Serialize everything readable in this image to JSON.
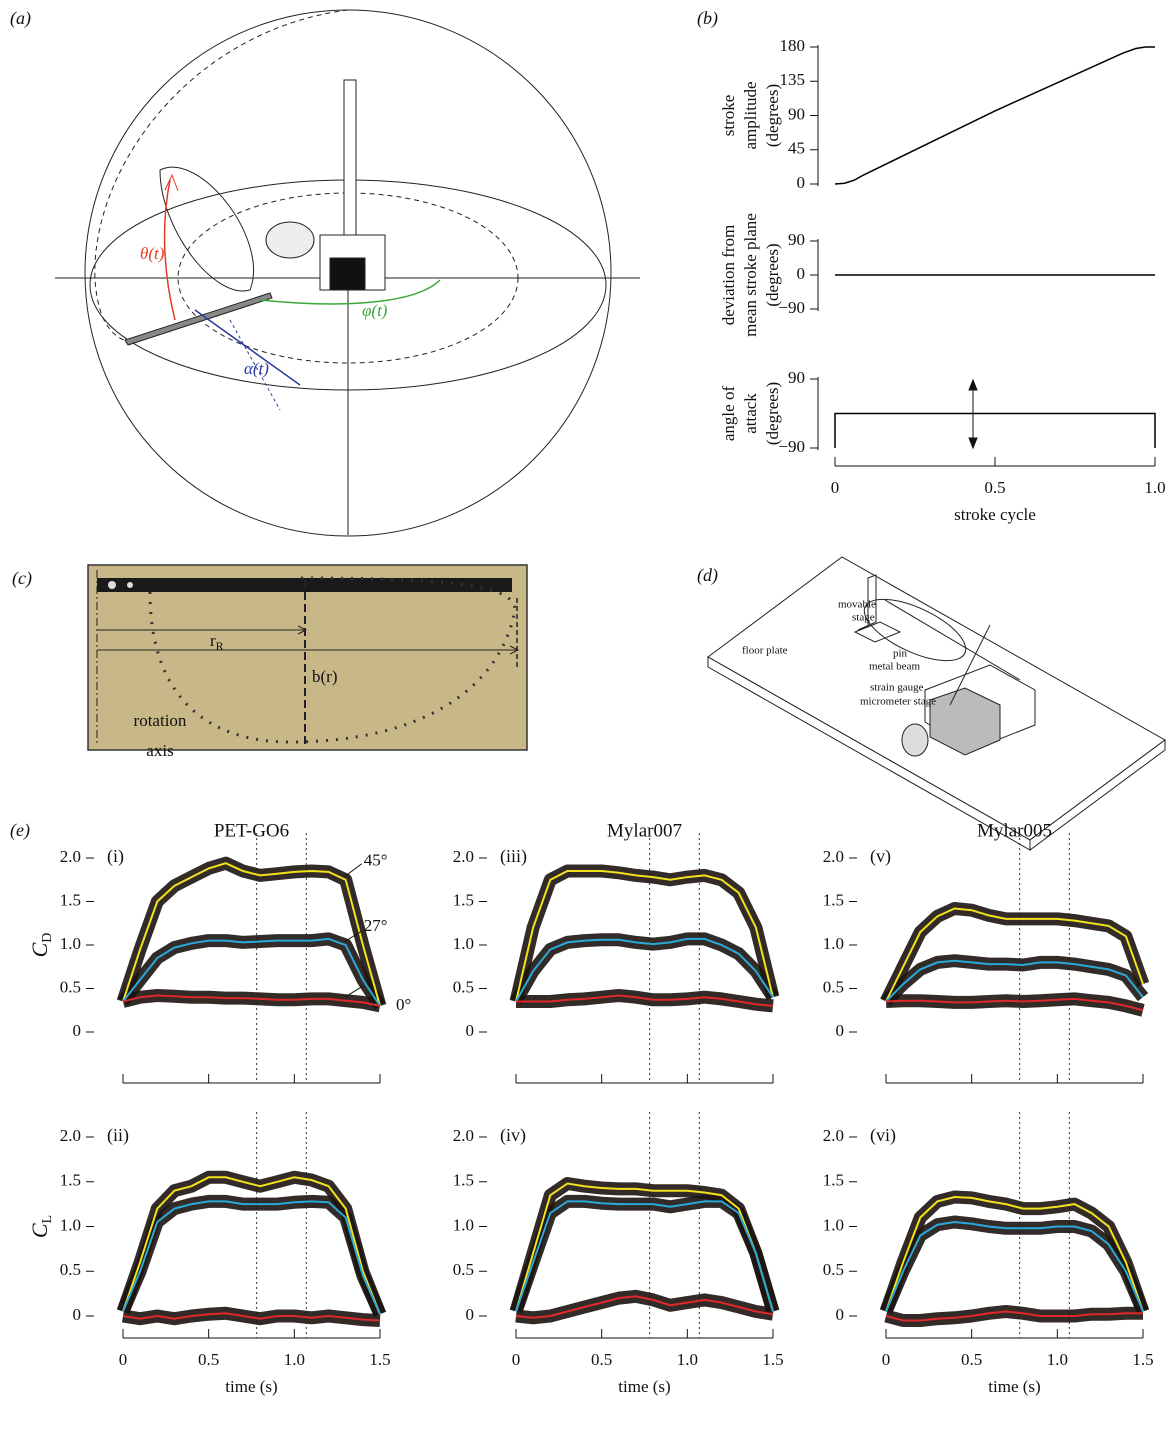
{
  "panel_a": {
    "label": "(a)",
    "theta": "θ(t)",
    "phi": "φ(t)",
    "alpha": "α(t)"
  },
  "panel_b": {
    "label": "(b)"
  },
  "panel_c": {
    "label": "(c)",
    "r": "r",
    "r_sub": "R",
    "b": "b(r)",
    "axis_1": "rotation",
    "axis_2": "axis"
  },
  "panel_d": {
    "label": "(d)",
    "floor": "floor plate",
    "stage_1": "movable",
    "stage_2": "stage",
    "pin": "pin",
    "beam": "metal beam",
    "gauge": "strain gauge",
    "micrometer": "micrometer stage"
  },
  "panel_e": {
    "label": "(e)"
  },
  "chart_data": [
    {
      "type": "line",
      "ylabel": [
        "stroke",
        "amplitude",
        "(degrees)"
      ],
      "x": [
        0,
        0.03,
        0.06,
        0.09,
        0.5,
        0.9,
        0.94,
        0.97,
        1
      ],
      "values": [
        0,
        1,
        5,
        12,
        96,
        172,
        178,
        180,
        180
      ],
      "color": "#000000",
      "xlim": [
        0,
        1
      ],
      "ylim": [
        0,
        180
      ],
      "yticks": [
        0,
        45,
        90,
        135,
        180
      ]
    },
    {
      "type": "line",
      "ylabel": [
        "deviation from",
        "mean stroke plane",
        "(degrees)"
      ],
      "x": [
        0,
        1
      ],
      "values": [
        0,
        0
      ],
      "color": "#000000",
      "xlim": [
        0,
        1
      ],
      "ylim": [
        -90,
        90
      ],
      "yticks": [
        {
          "value": -90,
          "label": "−90"
        },
        0,
        90
      ]
    },
    {
      "type": "line",
      "ylabel": [
        "angle of",
        "attack",
        "(degrees)"
      ],
      "x": [
        0,
        0,
        1,
        1
      ],
      "values": [
        -90,
        0,
        0,
        -90
      ],
      "color": "#000000",
      "xlim": [
        0,
        1
      ],
      "ylim": [
        -90,
        90
      ],
      "yticks": [
        {
          "value": -90,
          "label": "−90"
        },
        90
      ],
      "xticks": [
        0,
        0.5,
        {
          "value": 1,
          "label": "1.0"
        }
      ],
      "xlabel": "stroke cycle"
    },
    {
      "type": "line",
      "panel": "(i)",
      "title": "PET-GO6",
      "ylabel": "C",
      "ylabel_sub": "D",
      "x": [
        0,
        0.1,
        0.2,
        0.3,
        0.4,
        0.5,
        0.6,
        0.7,
        0.8,
        0.9,
        1,
        1.1,
        1.2,
        1.3,
        1.4,
        1.5
      ],
      "series": [
        {
          "name": "45°",
          "color": "#f2e21b",
          "values": [
            0.35,
            0.95,
            1.5,
            1.68,
            1.78,
            1.88,
            1.94,
            1.85,
            1.8,
            1.82,
            1.84,
            1.85,
            1.84,
            1.75,
            1.0,
            0.3
          ]
        },
        {
          "name": "27°",
          "color": "#2aa8d8",
          "values": [
            0.35,
            0.6,
            0.85,
            0.97,
            1.02,
            1.05,
            1.05,
            1.03,
            1.04,
            1.05,
            1.05,
            1.05,
            1.07,
            1.0,
            0.6,
            0.3
          ]
        },
        {
          "name": "0°",
          "color": "#e0282c",
          "values": [
            0.35,
            0.4,
            0.42,
            0.41,
            0.4,
            0.4,
            0.39,
            0.39,
            0.38,
            0.37,
            0.37,
            0.38,
            0.38,
            0.36,
            0.34,
            0.3
          ]
        }
      ],
      "xlim": [
        0,
        1.5
      ],
      "ylim": [
        0,
        2
      ],
      "yticks": [
        0,
        0.5,
        {
          "value": 1,
          "label": "1.0"
        },
        1.5,
        {
          "value": 2,
          "label": "2.0"
        }
      ],
      "xticks": [
        0,
        0.5,
        1,
        1.5
      ],
      "xtick_labels": false,
      "vlines": [
        0.78,
        1.07
      ]
    },
    {
      "type": "line",
      "panel": "(iii)",
      "title": "Mylar007",
      "x": [
        0,
        0.1,
        0.2,
        0.3,
        0.4,
        0.5,
        0.6,
        0.7,
        0.8,
        0.9,
        1,
        1.1,
        1.2,
        1.3,
        1.4,
        1.5
      ],
      "series": [
        {
          "color": "#f2e21b",
          "values": [
            0.35,
            1.2,
            1.75,
            1.85,
            1.85,
            1.85,
            1.83,
            1.8,
            1.78,
            1.75,
            1.78,
            1.8,
            1.75,
            1.6,
            1.2,
            0.4
          ]
        },
        {
          "color": "#2aa8d8",
          "values": [
            0.35,
            0.7,
            0.95,
            1.03,
            1.05,
            1.06,
            1.06,
            1.03,
            1.01,
            1.03,
            1.07,
            1.07,
            1.0,
            0.9,
            0.7,
            0.4
          ]
        },
        {
          "color": "#e0282c",
          "values": [
            0.35,
            0.35,
            0.35,
            0.37,
            0.38,
            0.4,
            0.42,
            0.4,
            0.37,
            0.37,
            0.38,
            0.4,
            0.38,
            0.35,
            0.32,
            0.3
          ]
        }
      ],
      "xlim": [
        0,
        1.5
      ],
      "ylim": [
        0,
        2
      ],
      "yticks": [
        0,
        0.5,
        {
          "value": 1,
          "label": "1.0"
        },
        1.5,
        {
          "value": 2,
          "label": "2.0"
        }
      ],
      "xticks": [
        0,
        0.5,
        1,
        1.5
      ],
      "xtick_labels": false,
      "vlines": [
        0.78,
        1.07
      ]
    },
    {
      "type": "line",
      "panel": "(v)",
      "title": "Mylar005",
      "x": [
        0,
        0.1,
        0.2,
        0.3,
        0.4,
        0.5,
        0.6,
        0.7,
        0.8,
        0.9,
        1,
        1.1,
        1.2,
        1.3,
        1.4,
        1.5
      ],
      "series": [
        {
          "color": "#f2e21b",
          "values": [
            0.35,
            0.75,
            1.15,
            1.33,
            1.42,
            1.4,
            1.34,
            1.3,
            1.3,
            1.3,
            1.3,
            1.28,
            1.25,
            1.22,
            1.1,
            0.55
          ]
        },
        {
          "color": "#2aa8d8",
          "values": [
            0.35,
            0.55,
            0.72,
            0.8,
            0.82,
            0.8,
            0.78,
            0.78,
            0.77,
            0.8,
            0.8,
            0.78,
            0.75,
            0.72,
            0.65,
            0.4
          ]
        },
        {
          "color": "#e0282c",
          "values": [
            0.35,
            0.36,
            0.36,
            0.35,
            0.34,
            0.34,
            0.35,
            0.36,
            0.35,
            0.36,
            0.37,
            0.38,
            0.36,
            0.34,
            0.3,
            0.25
          ]
        }
      ],
      "xlim": [
        0,
        1.5
      ],
      "ylim": [
        0,
        2
      ],
      "yticks": [
        0,
        0.5,
        {
          "value": 1,
          "label": "1.0"
        },
        1.5,
        {
          "value": 2,
          "label": "2.0"
        }
      ],
      "xticks": [
        0,
        0.5,
        1,
        1.5
      ],
      "xtick_labels": false,
      "vlines": [
        0.78,
        1.07
      ]
    },
    {
      "type": "line",
      "panel": "(ii)",
      "ylabel": "C",
      "ylabel_sub": "L",
      "xlabel": "time (s)",
      "x": [
        0,
        0.1,
        0.2,
        0.3,
        0.4,
        0.5,
        0.6,
        0.7,
        0.8,
        0.9,
        1,
        1.1,
        1.2,
        1.3,
        1.4,
        1.5
      ],
      "series": [
        {
          "color": "#f2e21b",
          "values": [
            0.05,
            0.6,
            1.2,
            1.4,
            1.45,
            1.55,
            1.55,
            1.5,
            1.45,
            1.5,
            1.55,
            1.52,
            1.45,
            1.2,
            0.5,
            0.02
          ]
        },
        {
          "color": "#2aa8d8",
          "values": [
            0.05,
            0.5,
            1.05,
            1.2,
            1.25,
            1.28,
            1.28,
            1.25,
            1.25,
            1.25,
            1.27,
            1.28,
            1.27,
            1.1,
            0.45,
            0.02
          ]
        },
        {
          "color": "#e0282c",
          "values": [
            0,
            -0.03,
            0,
            -0.03,
            0,
            0.02,
            0.03,
            0,
            -0.03,
            0,
            0,
            -0.02,
            0,
            -0.02,
            -0.04,
            -0.05
          ]
        }
      ],
      "xlim": [
        0,
        1.5
      ],
      "ylim": [
        0,
        2
      ],
      "yticks": [
        0,
        0.5,
        {
          "value": 1,
          "label": "1.0"
        },
        1.5,
        {
          "value": 2,
          "label": "2.0"
        }
      ],
      "xticks": [
        0,
        0.5,
        {
          "value": 1,
          "label": "1.0"
        },
        1.5
      ],
      "vlines": [
        0.78,
        1.07
      ]
    },
    {
      "type": "line",
      "panel": "(iv)",
      "xlabel": "time (s)",
      "x": [
        0,
        0.1,
        0.2,
        0.3,
        0.4,
        0.5,
        0.6,
        0.7,
        0.8,
        0.9,
        1,
        1.1,
        1.2,
        1.3,
        1.4,
        1.5
      ],
      "series": [
        {
          "color": "#f2e21b",
          "values": [
            0.05,
            0.7,
            1.35,
            1.48,
            1.45,
            1.43,
            1.42,
            1.42,
            1.4,
            1.4,
            1.4,
            1.38,
            1.35,
            1.2,
            0.7,
            0.05
          ]
        },
        {
          "color": "#2aa8d8",
          "values": [
            0.05,
            0.6,
            1.15,
            1.28,
            1.28,
            1.26,
            1.25,
            1.25,
            1.25,
            1.22,
            1.25,
            1.28,
            1.28,
            1.15,
            0.7,
            0.05
          ]
        },
        {
          "color": "#e0282c",
          "values": [
            0,
            -0.02,
            0,
            0.05,
            0.1,
            0.15,
            0.2,
            0.22,
            0.18,
            0.12,
            0.15,
            0.18,
            0.15,
            0.1,
            0.05,
            0.02
          ]
        }
      ],
      "xlim": [
        0,
        1.5
      ],
      "ylim": [
        0,
        2
      ],
      "yticks": [
        0,
        0.5,
        {
          "value": 1,
          "label": "1.0"
        },
        1.5,
        {
          "value": 2,
          "label": "2.0"
        }
      ],
      "xticks": [
        0,
        0.5,
        {
          "value": 1,
          "label": "1.0"
        },
        1.5
      ],
      "vlines": [
        0.78,
        1.07
      ]
    },
    {
      "type": "line",
      "panel": "(vi)",
      "xlabel": "time (s)",
      "x": [
        0,
        0.1,
        0.2,
        0.3,
        0.4,
        0.5,
        0.6,
        0.7,
        0.8,
        0.9,
        1,
        1.1,
        1.2,
        1.3,
        1.4,
        1.5
      ],
      "series": [
        {
          "color": "#f2e21b",
          "values": [
            0.05,
            0.6,
            1.1,
            1.28,
            1.33,
            1.32,
            1.28,
            1.25,
            1.2,
            1.2,
            1.22,
            1.25,
            1.15,
            1.0,
            0.6,
            0.05
          ]
        },
        {
          "color": "#2aa8d8",
          "values": [
            0.05,
            0.5,
            0.9,
            1.02,
            1.05,
            1.03,
            1.0,
            0.98,
            0.98,
            0.98,
            1.0,
            1.0,
            0.95,
            0.8,
            0.5,
            0.05
          ]
        },
        {
          "color": "#e0282c",
          "values": [
            0,
            -0.05,
            -0.05,
            -0.03,
            -0.02,
            0,
            0.03,
            0.05,
            0.03,
            0,
            0,
            0,
            0.02,
            0.02,
            0.03,
            0.03
          ]
        }
      ],
      "xlim": [
        0,
        1.5
      ],
      "ylim": [
        0,
        2
      ],
      "yticks": [
        0,
        0.5,
        {
          "value": 1,
          "label": "1.0"
        },
        1.5,
        {
          "value": 2,
          "label": "2.0"
        }
      ],
      "xticks": [
        0,
        0.5,
        {
          "value": 1,
          "label": "1.0"
        },
        1.5
      ],
      "vlines": [
        0.78,
        1.07
      ]
    }
  ]
}
